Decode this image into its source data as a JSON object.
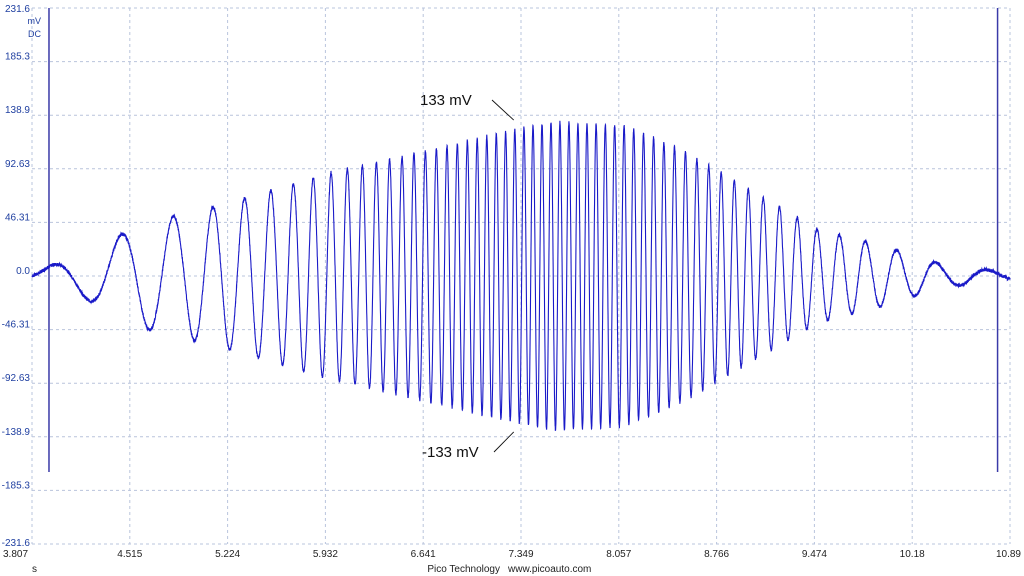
{
  "chart_data": {
    "type": "line",
    "title": "",
    "xlabel": "s",
    "ylabel": "mV",
    "coupling": "DC",
    "xlim": [
      3.807,
      10.89
    ],
    "ylim": [
      -231.6,
      231.6
    ],
    "x_ticks": [
      "3.807",
      "4.515",
      "5.224",
      "5.932",
      "6.641",
      "7.349",
      "8.057",
      "8.766",
      "9.474",
      "10.18",
      "10.89"
    ],
    "y_ticks": [
      "231.6",
      "185.3",
      "138.9",
      "92.63",
      "46.31",
      "0.0",
      "-46.31",
      "-92.63",
      "-138.9",
      "-185.3",
      "-231.6"
    ],
    "grid": true,
    "series": [
      {
        "color": "#1a1ac8",
        "description_values": {
          "envelope_x": [
            3.807,
            4.2,
            4.6,
            5.2,
            6.0,
            6.8,
            7.35,
            7.6,
            8.1,
            8.5,
            9.0,
            9.5,
            10.0,
            10.4,
            10.89
          ],
          "envelope_amplitude": [
            3,
            20,
            45,
            62,
            90,
            112,
            128,
            133,
            130,
            110,
            75,
            40,
            25,
            10,
            3
          ],
          "peak_max": 133,
          "peak_min": -133
        }
      }
    ],
    "annotations": [
      {
        "text": "133 mV",
        "x": 7.6,
        "y": 133
      },
      {
        "text": "-133 mV",
        "x": 7.6,
        "y": -133
      }
    ],
    "cursor_lines_x": [
      3.93,
      10.8
    ]
  },
  "footer": {
    "brand": "Pico Technology",
    "url": "www.picoauto.com"
  },
  "colors": {
    "trace": "#1a1ac8",
    "grid": "#b9c4dc",
    "axis_text": "#1f3fa0"
  }
}
